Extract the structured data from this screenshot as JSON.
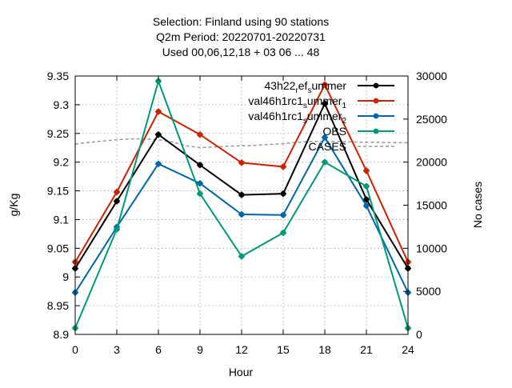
{
  "chart_data": {
    "type": "line",
    "title_lines": [
      "Selection: Finland using    90 stations",
      "Q2m   Period: 20220701-20220731",
      "Used  00,06,12,18  + 03 06 ... 48"
    ],
    "xlabel": "Hour",
    "ylabel": "g/Kg",
    "y2label": "No cases",
    "xlim": [
      0,
      24
    ],
    "ylim": [
      8.9,
      9.35
    ],
    "y2lim": [
      0,
      30000
    ],
    "xticks": [
      "0",
      "3",
      "6",
      "9",
      "12",
      "15",
      "18",
      "21",
      "24"
    ],
    "yticks": [
      "8.9",
      "8.95",
      "9",
      "9.05",
      "9.1",
      "9.15",
      "9.2",
      "9.25",
      "9.3",
      "9.35"
    ],
    "y2ticks": [
      "0",
      "5000",
      "10000",
      "15000",
      "20000",
      "25000",
      "30000"
    ],
    "grid": true,
    "legend_position": "top-right",
    "x": [
      0,
      3,
      6,
      9,
      12,
      15,
      18,
      21,
      24
    ],
    "series": [
      {
        "name": "43h22_ref_summer",
        "legend_main": "43h22",
        "legend_parts": [
          [
            "r",
            "sub"
          ],
          [
            "ef",
            ""
          ],
          [
            "s",
            "sub"
          ],
          [
            "ummer",
            ""
          ]
        ],
        "color": "#000000",
        "values": [
          9.015,
          9.132,
          9.248,
          9.195,
          9.143,
          9.145,
          9.302,
          9.135,
          9.015
        ]
      },
      {
        "name": "val46h1rc1_summer_1",
        "legend_main": "val46h1rc1",
        "legend_parts": [
          [
            "s",
            "sub"
          ],
          [
            "ummer",
            ""
          ],
          [
            "1",
            "sub"
          ]
        ],
        "color": "#cc2200",
        "values": [
          9.026,
          9.148,
          9.288,
          9.248,
          9.199,
          9.192,
          9.335,
          9.185,
          9.026
        ]
      },
      {
        "name": "val46h1rc1_summer_2",
        "legend_main": "val46h1rc1",
        "legend_parts": [
          [
            "s",
            "sub"
          ],
          [
            "ummer",
            ""
          ],
          [
            "2",
            "sub"
          ]
        ],
        "color": "#0066aa",
        "values": [
          8.973,
          9.087,
          9.197,
          9.163,
          9.109,
          9.108,
          9.243,
          9.124,
          8.973
        ]
      },
      {
        "name": "OBS",
        "legend_main": "OBS",
        "legend_parts": [],
        "color": "#009977",
        "values": [
          8.911,
          9.083,
          9.341,
          9.145,
          9.036,
          9.077,
          9.2,
          9.158,
          8.911
        ]
      }
    ],
    "cases": {
      "name": "CASES",
      "color": "#999999",
      "x": [
        0,
        1,
        2,
        3,
        4,
        5,
        6,
        7,
        8,
        9,
        10,
        11,
        12,
        13,
        14,
        15,
        16,
        17,
        18,
        19,
        20,
        21,
        22,
        23,
        24
      ],
      "values": [
        22100,
        22300,
        22450,
        22600,
        22700,
        22700,
        22600,
        22350,
        21900,
        21700,
        21750,
        21850,
        21900,
        21950,
        22050,
        22150,
        22300,
        22400,
        22400,
        22400,
        22350,
        22300,
        22300,
        22250,
        22250
      ]
    }
  }
}
